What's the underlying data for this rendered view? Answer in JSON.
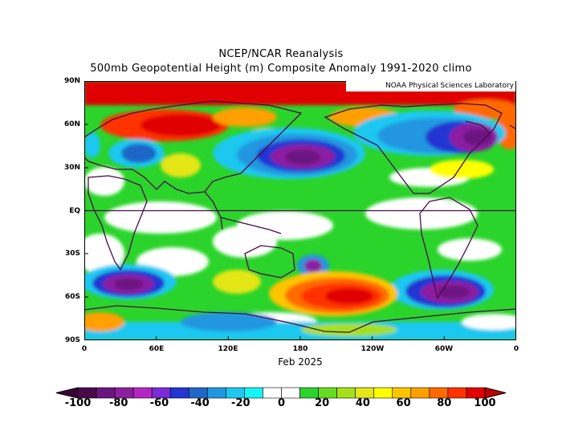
{
  "title_line1": "NCEP/NCAR Reanalysis",
  "title_line2": "500mb Geopotential Height (m) Composite Anomaly 1991-2020 climo",
  "credit": "NOAA Physical Sciences Laboratory",
  "x_title": "Feb 2025",
  "lat_labels": [
    "90N",
    "60N",
    "30N",
    "EQ",
    "30S",
    "60S",
    "90S"
  ],
  "lon_labels": [
    "0",
    "60E",
    "120E",
    "180",
    "120W",
    "60W",
    "0"
  ],
  "colorbar": {
    "labels": [
      "-100",
      "-80",
      "-60",
      "-40",
      "-20",
      "0",
      "20",
      "40",
      "60",
      "80",
      "100"
    ],
    "colors": [
      "#4a0a4a",
      "#6a1680",
      "#8c1fa0",
      "#b426c4",
      "#7a2ad6",
      "#2336d2",
      "#1f66c8",
      "#2196e0",
      "#1ec8f0",
      "#15f5f5",
      "#ffffff",
      "#ffffff",
      "#2ad42a",
      "#66dc20",
      "#a6e01c",
      "#e4e618",
      "#ffff00",
      "#ffc400",
      "#ffa000",
      "#ff6a00",
      "#ff3200",
      "#e00000"
    ]
  }
}
